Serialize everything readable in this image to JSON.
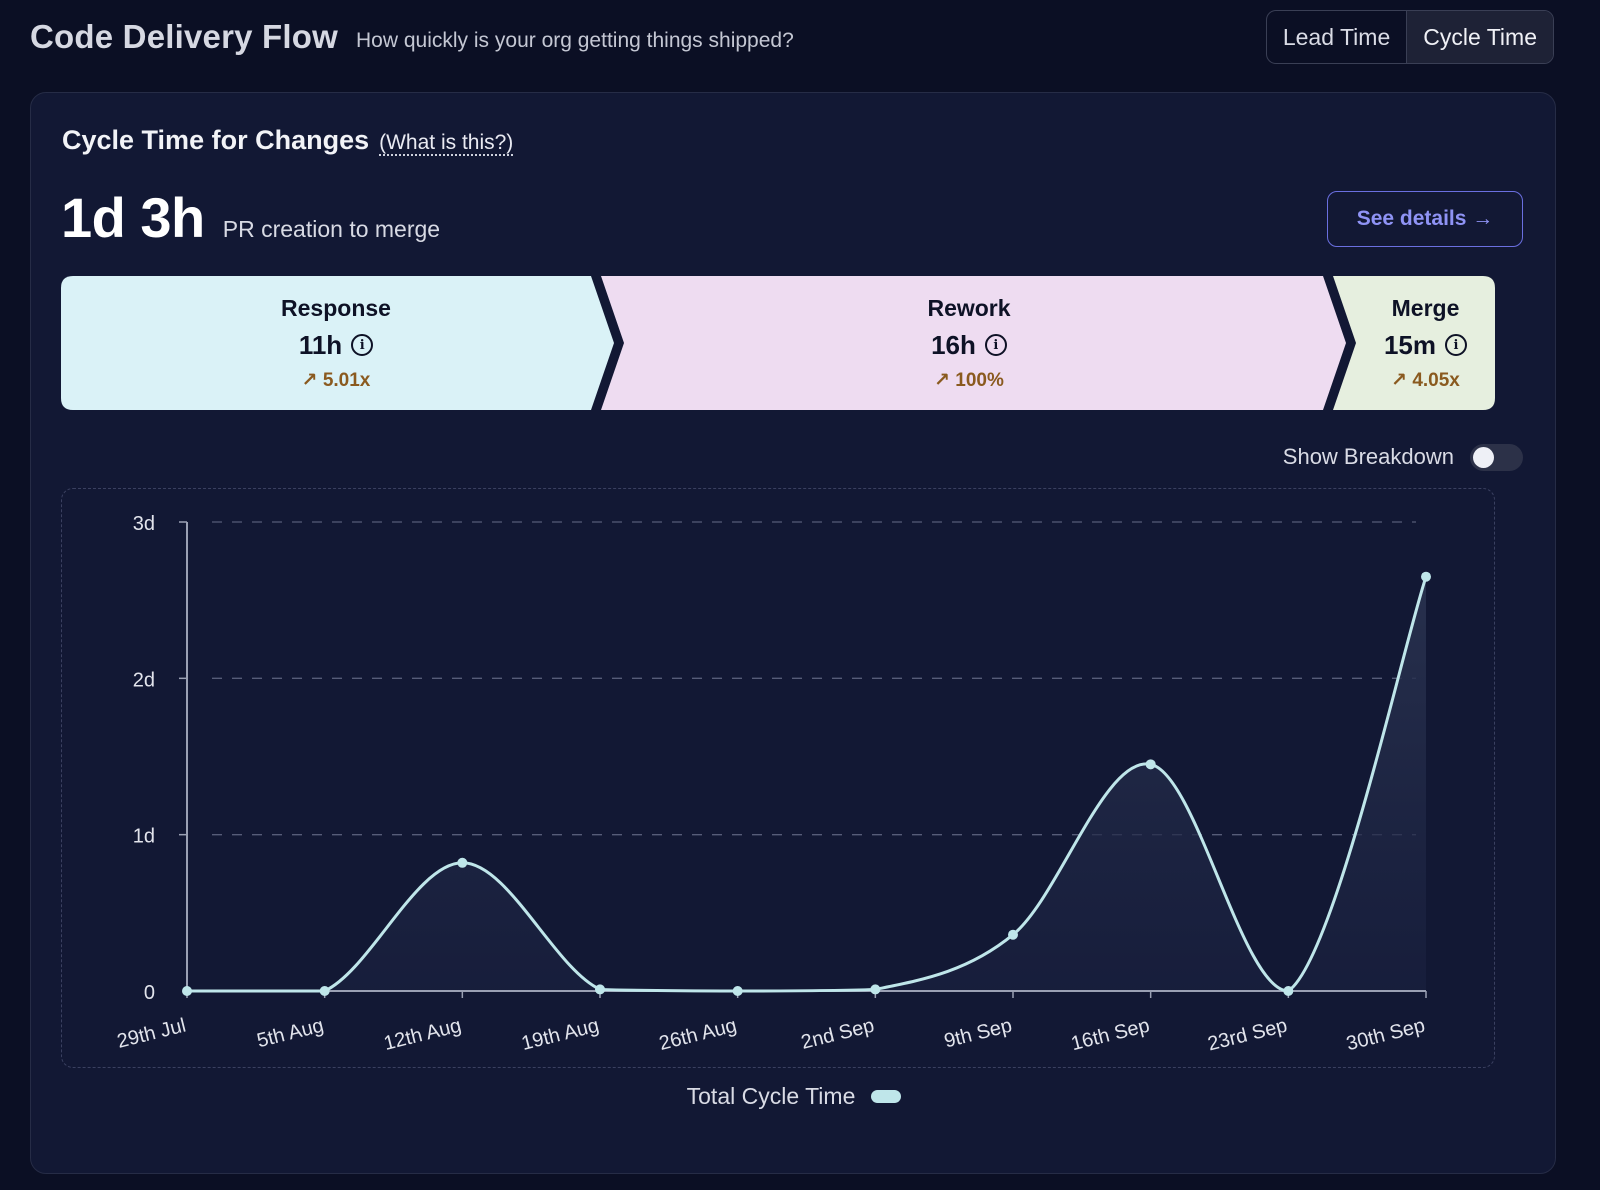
{
  "header": {
    "title": "Code Delivery Flow",
    "subtitle": "How quickly is your org getting things shipped?",
    "tabs": [
      {
        "label": "Lead Time",
        "active": false
      },
      {
        "label": "Cycle Time",
        "active": true
      }
    ]
  },
  "card": {
    "title": "Cycle Time for Changes",
    "help_link": "(What is this?)",
    "metric_value": "1d 3h",
    "metric_caption": "PR creation to merge",
    "details_button": "See details →"
  },
  "stages": [
    {
      "name": "Response",
      "value": "11h",
      "trend": "5.01x",
      "color": "#daf2f7"
    },
    {
      "name": "Rework",
      "value": "16h",
      "trend": "100%",
      "color": "#eedcf1"
    },
    {
      "name": "Merge",
      "value": "15m",
      "trend": "4.05x",
      "color": "#e6efdf"
    }
  ],
  "toggle": {
    "label": "Show Breakdown",
    "on": false
  },
  "colors": {
    "line": "#bfe6ea",
    "accent": "#8f93f5",
    "trend": "#8a5a1f"
  },
  "chart_data": {
    "type": "area",
    "x": [
      "29th Jul",
      "5th Aug",
      "12th Aug",
      "19th Aug",
      "26th Aug",
      "2nd Sep",
      "9th Sep",
      "16th Sep",
      "23rd Sep",
      "30th Sep"
    ],
    "series": [
      {
        "name": "Total Cycle Time",
        "values_days": [
          0,
          0,
          0.82,
          0.01,
          0,
          0.01,
          0.36,
          1.45,
          0,
          2.65
        ]
      }
    ],
    "y_ticks": [
      "0",
      "1d",
      "2d",
      "3d"
    ],
    "ylim_days": [
      0,
      3
    ],
    "grid": "horizontal-dashed",
    "legend_position": "bottom-center"
  }
}
